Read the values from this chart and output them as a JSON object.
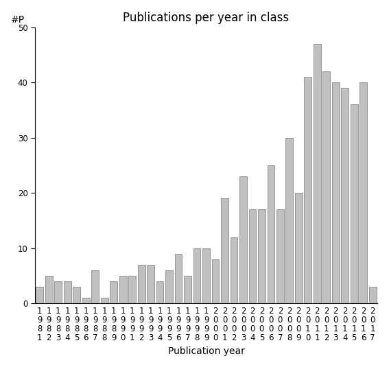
{
  "title": "Publications per year in class",
  "xlabel": "Publication year",
  "ylabel": "#P",
  "years": [
    "1981",
    "1982",
    "1983",
    "1984",
    "1985",
    "1986",
    "1987",
    "1988",
    "1989",
    "1990",
    "1991",
    "1992",
    "1993",
    "1994",
    "1995",
    "1996",
    "1997",
    "1998",
    "1999",
    "2000",
    "2001",
    "2002",
    "2003",
    "2004",
    "2005",
    "2006",
    "2007",
    "2008",
    "2009",
    "2010",
    "2011",
    "2012",
    "2013",
    "2014",
    "2015",
    "2016",
    "2017"
  ],
  "values": [
    3,
    5,
    4,
    4,
    3,
    1,
    6,
    1,
    4,
    5,
    5,
    7,
    7,
    4,
    6,
    9,
    5,
    10,
    10,
    8,
    19,
    12,
    23,
    17,
    17,
    25,
    17,
    30,
    20,
    41,
    47,
    42,
    40,
    39,
    36,
    40,
    3
  ],
  "bar_color": "#c0c0c0",
  "bar_edgecolor": "#888888",
  "ylim": [
    0,
    50
  ],
  "yticks": [
    0,
    10,
    20,
    30,
    40,
    50
  ],
  "background_color": "#ffffff",
  "title_fontsize": 12,
  "axis_label_fontsize": 10,
  "tick_fontsize": 8.5
}
